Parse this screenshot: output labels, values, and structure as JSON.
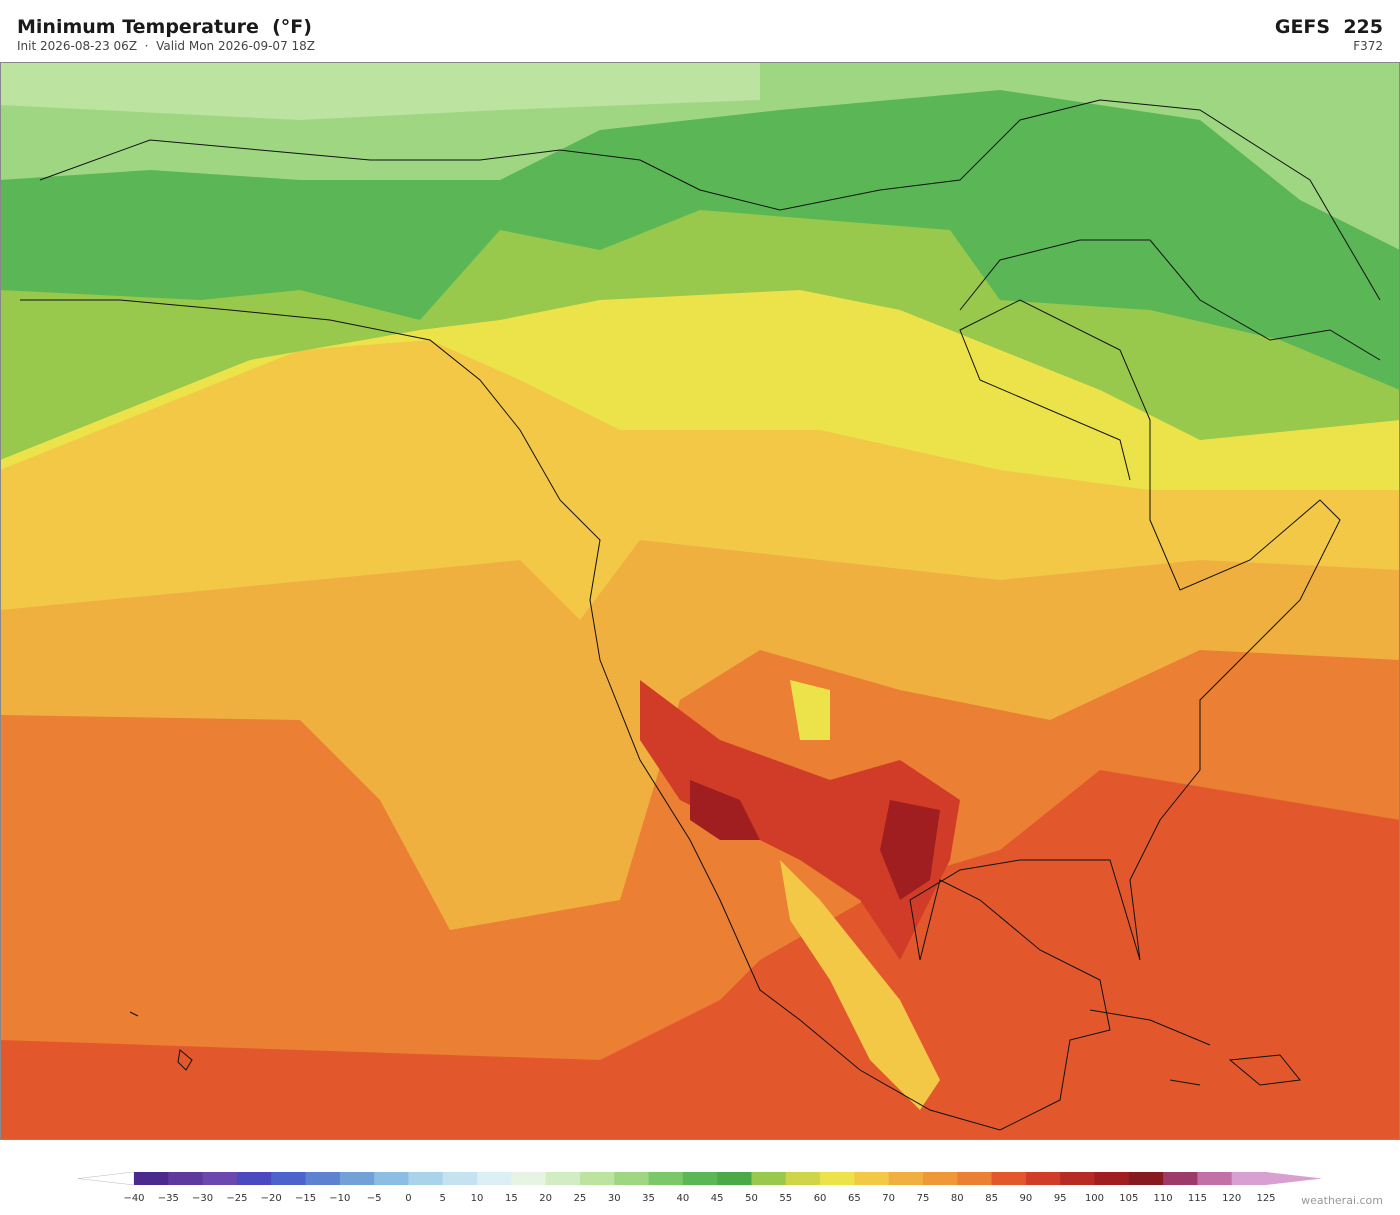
{
  "header": {
    "title": "Minimum Temperature  (°F)",
    "subtitle": "Init 2026-08-23 06Z  ·  Valid Mon 2026-09-07 18Z",
    "model": "GEFS  225",
    "forecast_hour": "F372"
  },
  "colorbar": {
    "ticks": [
      {
        "value": -40,
        "label": "−40"
      },
      {
        "value": -35,
        "label": "−35"
      },
      {
        "value": -30,
        "label": "−30"
      },
      {
        "value": -25,
        "label": "−25"
      },
      {
        "value": -20,
        "label": "−20"
      },
      {
        "value": -15,
        "label": "−15"
      },
      {
        "value": -10,
        "label": "−10"
      },
      {
        "value": -5,
        "label": "−5"
      },
      0,
      5,
      10,
      15,
      20,
      25,
      30,
      35,
      40,
      45,
      50,
      55,
      60,
      65,
      70,
      75,
      80,
      85,
      90,
      95,
      100,
      105,
      110,
      115,
      120,
      125
    ],
    "colors": [
      "#4a2a8c",
      "#5e3a9c",
      "#6a48ad",
      "#4c48bf",
      "#4c62cc",
      "#5c82d0",
      "#74a0d8",
      "#8cbde3",
      "#a8d3eb",
      "#c4e2f0",
      "#dceff4",
      "#e6f4e4",
      "#d2ecc4",
      "#bde3a0",
      "#9fd682",
      "#7cc768",
      "#5bb655",
      "#4aaa48",
      "#98c84c",
      "#cfd548",
      "#ece34a",
      "#f2c846",
      "#f0b040",
      "#ef9838",
      "#eb7f33",
      "#e2582c",
      "#d03c28",
      "#b82a24",
      "#a01e20",
      "#861a1e",
      "#9e3a6a",
      "#c270a8",
      "#d8a0d0"
    ],
    "under_color": "#ffffff",
    "over_color": "#d8a0d0"
  },
  "watermark": "weatherai.com"
}
